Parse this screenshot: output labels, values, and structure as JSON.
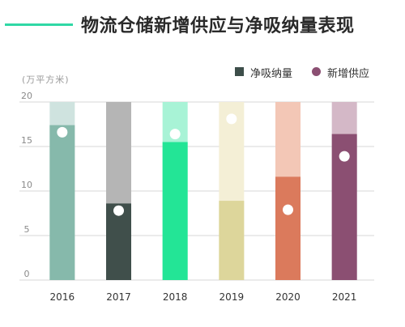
{
  "title": "物流仓储新增供应与净吸纳量表现",
  "unit_label": "(万平方米)",
  "legend": {
    "absorption_label": "净吸纳量",
    "supply_label": "新增供应",
    "absorption_color": "#3d4e4a",
    "supply_color": "#8b4f72"
  },
  "chart_data": {
    "type": "bar",
    "categories": [
      "2016",
      "2017",
      "2018",
      "2019",
      "2020",
      "2021"
    ],
    "ylim": [
      0,
      20
    ],
    "yticks": [
      0,
      5,
      10,
      15,
      20
    ],
    "grid": true,
    "legend_position": "top-right",
    "series": [
      {
        "name": "净吸纳量",
        "kind": "bar",
        "values": [
          17.4,
          8.6,
          15.5,
          8.9,
          11.6,
          16.4
        ]
      },
      {
        "name": "新增供应",
        "kind": "point",
        "values": [
          16.6,
          7.8,
          16.4,
          18.1,
          7.9,
          13.9
        ]
      }
    ],
    "bar_colors": [
      "#86b9ab",
      "#404f4b",
      "#23e596",
      "#ddd69b",
      "#db7a5c",
      "#8b4f72"
    ],
    "bar_bg_colors": [
      "#cfe3df",
      "#b5b5b5",
      "#a8f3d6",
      "#f4efd6",
      "#f3c7b6",
      "#d4b8c7"
    ]
  }
}
